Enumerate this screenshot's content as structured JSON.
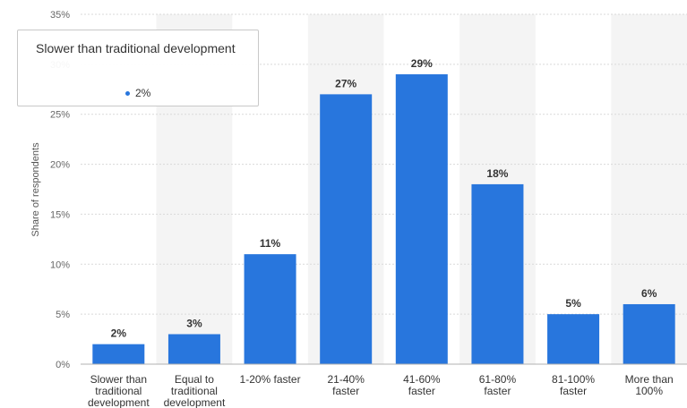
{
  "chart_data": {
    "type": "bar",
    "categories": [
      [
        "Slower than",
        "traditional",
        "development"
      ],
      [
        "Equal to",
        "traditional",
        "development"
      ],
      [
        "1-20% faster"
      ],
      [
        "21-40%",
        "faster"
      ],
      [
        "41-60%",
        "faster"
      ],
      [
        "61-80%",
        "faster"
      ],
      [
        "81-100%",
        "faster"
      ],
      [
        "More than",
        "100%"
      ]
    ],
    "values": [
      2,
      3,
      11,
      27,
      29,
      18,
      5,
      6
    ],
    "value_labels": [
      "2%",
      "3%",
      "11%",
      "27%",
      "29%",
      "18%",
      "5%",
      "6%"
    ],
    "ylabel": "Share of respondents",
    "ylim": [
      0,
      35
    ],
    "yticks": [
      0,
      5,
      10,
      15,
      20,
      25,
      30,
      35
    ],
    "ytick_labels": [
      "0%",
      "5%",
      "10%",
      "15%",
      "20%",
      "25%",
      "30%",
      "35%"
    ],
    "grid": true,
    "bar_color": "#2876dd"
  },
  "tooltip": {
    "title": "Slower than traditional development",
    "value": "2%"
  }
}
